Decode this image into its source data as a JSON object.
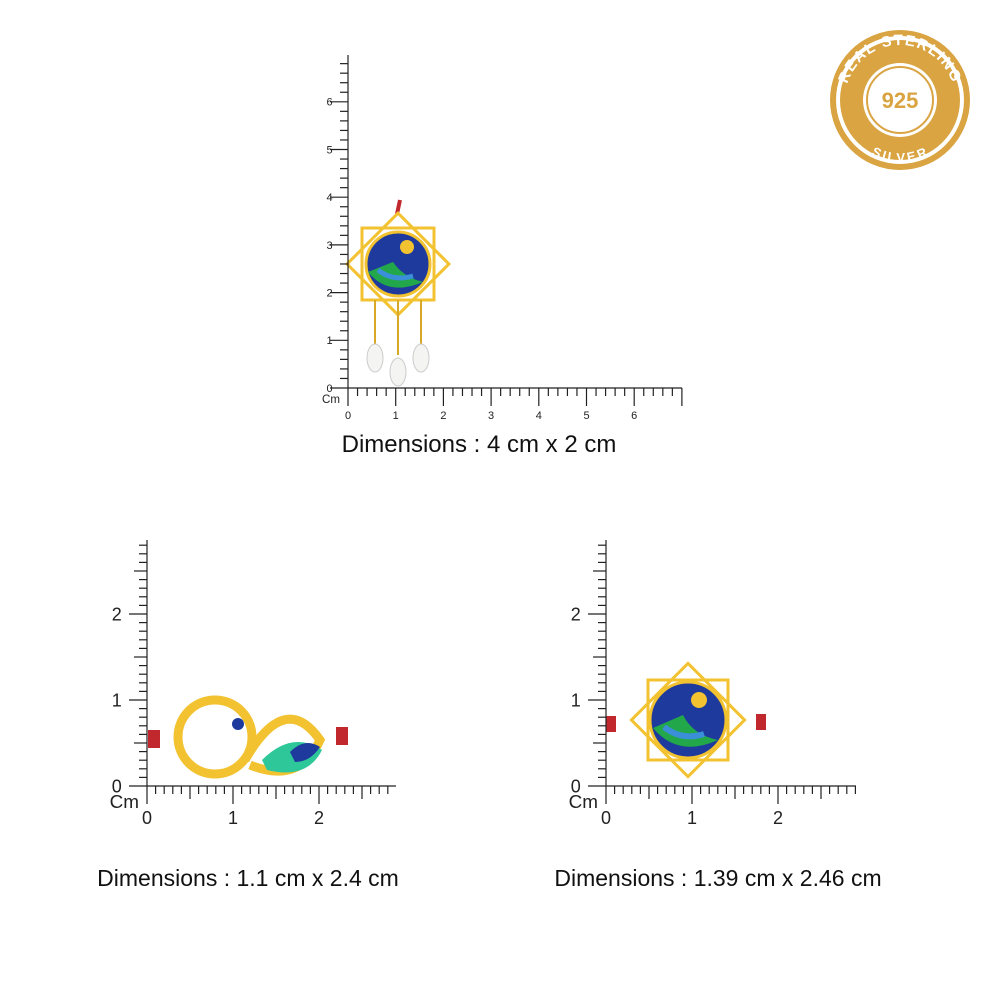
{
  "badge": {
    "top_text": "REAL STERLING",
    "center_text": "925",
    "bottom_text": "SILVER"
  },
  "rulers": [
    {
      "y_labels": [
        "0",
        "1",
        "2",
        "3",
        "4",
        "5",
        "6"
      ],
      "x_labels": [
        "0",
        "1",
        "2",
        "3",
        "4",
        "5",
        "6"
      ],
      "unit": "Cm",
      "caption": "Dimensions : 4 cm x 2 cm"
    },
    {
      "y_labels": [
        "0",
        "1",
        "2"
      ],
      "x_labels": [
        "0",
        "1",
        "2"
      ],
      "unit": "Cm",
      "caption": "Dimensions : 1.1 cm x 2.4 cm"
    },
    {
      "y_labels": [
        "0",
        "1",
        "2"
      ],
      "x_labels": [
        "0",
        "1",
        "2"
      ],
      "unit": "Cm",
      "caption": "Dimensions : 1.39 cm x 2.46 cm"
    }
  ]
}
